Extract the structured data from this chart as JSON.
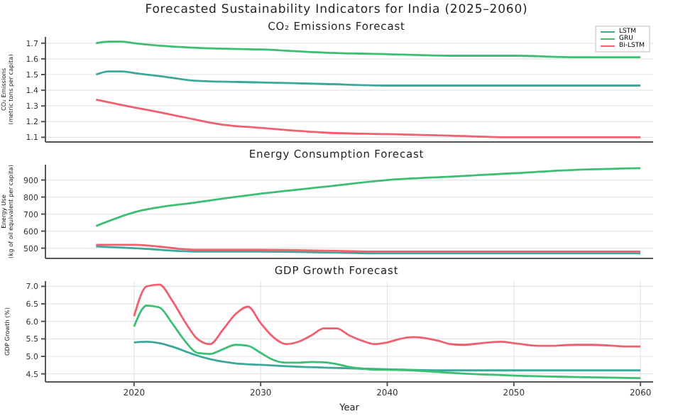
{
  "chart_data": [
    {
      "type": "line",
      "title": "Forecasted Sustainability Indicators for India (2025–2060)",
      "subtitle": "CO₂ Emissions Forecast",
      "ylabel": "CO₂ Emissions\n(metric tons per capita)",
      "xlim": [
        2013,
        2061
      ],
      "xticks": [
        2020,
        2030,
        2040,
        2050,
        2060
      ],
      "ylim": [
        1.07,
        1.74
      ],
      "yticks": [
        1.1,
        1.2,
        1.3,
        1.4,
        1.5,
        1.6,
        1.7
      ],
      "grid": true,
      "legend": "top right",
      "tick_labels": "y",
      "series": [
        {
          "name": "LSTM",
          "color": "#3aa89a",
          "x": [
            2017,
            2018,
            2019,
            2020,
            2022,
            2025,
            2030,
            2035,
            2040,
            2050,
            2060
          ],
          "values": [
            1.5,
            1.52,
            1.52,
            1.51,
            1.49,
            1.46,
            1.45,
            1.44,
            1.43,
            1.43,
            1.43
          ]
        },
        {
          "name": "GRU",
          "color": "#3cbf73",
          "x": [
            2017,
            2018,
            2019,
            2020,
            2025,
            2030,
            2035,
            2040,
            2045,
            2050,
            2055,
            2060
          ],
          "values": [
            1.7,
            1.71,
            1.71,
            1.7,
            1.67,
            1.66,
            1.64,
            1.63,
            1.62,
            1.62,
            1.61,
            1.61
          ]
        },
        {
          "name": "Bi-LSTM",
          "color": "#f0606e",
          "x": [
            2017,
            2020,
            2022,
            2025,
            2027,
            2030,
            2035,
            2040,
            2045,
            2050,
            2060
          ],
          "values": [
            1.34,
            1.29,
            1.26,
            1.21,
            1.18,
            1.16,
            1.13,
            1.12,
            1.11,
            1.1,
            1.1
          ]
        }
      ]
    },
    {
      "type": "line",
      "title": "Energy Consumption Forecast",
      "ylabel": "Energy Use\n(kg of oil equivalent per capita)",
      "xlim": [
        2013,
        2061
      ],
      "xticks": [
        2020,
        2030,
        2040,
        2050,
        2060
      ],
      "ylim": [
        440,
        990
      ],
      "yticks": [
        500,
        600,
        700,
        800,
        900
      ],
      "grid": true,
      "tick_labels": "y",
      "series": [
        {
          "color": "#3aa89a",
          "x": [
            2017,
            2020,
            2025,
            2030,
            2040,
            2050,
            2060
          ],
          "values": [
            510,
            500,
            480,
            480,
            470,
            470,
            470
          ]
        },
        {
          "color": "#3cbf73",
          "x": [
            2017,
            2020,
            2025,
            2030,
            2035,
            2040,
            2045,
            2050,
            2055,
            2060
          ],
          "values": [
            630,
            710,
            770,
            820,
            860,
            900,
            920,
            940,
            960,
            970
          ]
        },
        {
          "color": "#f0606e",
          "x": [
            2017,
            2020,
            2025,
            2030,
            2040,
            2050,
            2060
          ],
          "values": [
            520,
            520,
            490,
            490,
            480,
            480,
            480
          ]
        }
      ]
    },
    {
      "type": "line",
      "title": "GDP Growth Forecast",
      "xlabel": "Year",
      "ylabel": "GDP Growth (%)",
      "xlim": [
        2013,
        2061
      ],
      "xticks": [
        2020,
        2030,
        2040,
        2050,
        2060
      ],
      "ylim": [
        4.27,
        7.15
      ],
      "yticks": [
        {
          "value": 4.5,
          "label": "4.5"
        },
        {
          "value": 5,
          "label": "5.0"
        },
        {
          "value": 5.5,
          "label": "5.5"
        },
        {
          "value": 6,
          "label": "6.0"
        },
        {
          "value": 6.5,
          "label": "6.5"
        },
        {
          "value": 7,
          "label": "7.0"
        }
      ],
      "grid": true,
      "series": [
        {
          "color": "#3aa89a",
          "x": [
            2020,
            2021,
            2022,
            2023,
            2024,
            2025,
            2026,
            2027,
            2028,
            2030,
            2032,
            2035,
            2040,
            2045,
            2050,
            2060
          ],
          "values": [
            5.4,
            5.42,
            5.38,
            5.28,
            5.15,
            5.02,
            4.92,
            4.85,
            4.8,
            4.76,
            4.72,
            4.68,
            4.63,
            4.6,
            4.6,
            4.6
          ]
        },
        {
          "color": "#3cbf73",
          "x": [
            2020,
            2021,
            2022,
            2023,
            2024,
            2025,
            2026,
            2027,
            2028,
            2029,
            2030,
            2031,
            2032,
            2033,
            2034,
            2035,
            2036,
            2037,
            2038,
            2039,
            2040,
            2042,
            2045,
            2050,
            2055,
            2060
          ],
          "values": [
            5.85,
            6.45,
            6.4,
            5.95,
            5.45,
            5.1,
            5.07,
            5.2,
            5.33,
            5.3,
            5.1,
            4.9,
            4.82,
            4.82,
            4.84,
            4.83,
            4.78,
            4.7,
            4.65,
            4.62,
            4.62,
            4.6,
            4.53,
            4.45,
            4.41,
            4.38
          ]
        },
        {
          "color": "#f0606e",
          "x": [
            2020,
            2021,
            2022,
            2023,
            2024,
            2025,
            2026,
            2027,
            2028,
            2029,
            2030,
            2031,
            2032,
            2033,
            2034,
            2035,
            2036,
            2037,
            2038,
            2039,
            2040,
            2041,
            2042,
            2043,
            2044,
            2045,
            2046,
            2047,
            2048,
            2049,
            2050,
            2051,
            2052,
            2053,
            2054,
            2055,
            2056,
            2057,
            2058,
            2059,
            2060
          ],
          "values": [
            6.15,
            7.0,
            7.05,
            6.6,
            6.0,
            5.5,
            5.35,
            5.75,
            6.2,
            6.42,
            5.95,
            5.55,
            5.35,
            5.42,
            5.6,
            5.8,
            5.8,
            5.6,
            5.45,
            5.35,
            5.4,
            5.5,
            5.55,
            5.52,
            5.45,
            5.35,
            5.33,
            5.36,
            5.4,
            5.42,
            5.38,
            5.33,
            5.3,
            5.3,
            5.32,
            5.33,
            5.33,
            5.32,
            5.3,
            5.28,
            5.28
          ]
        }
      ]
    }
  ]
}
